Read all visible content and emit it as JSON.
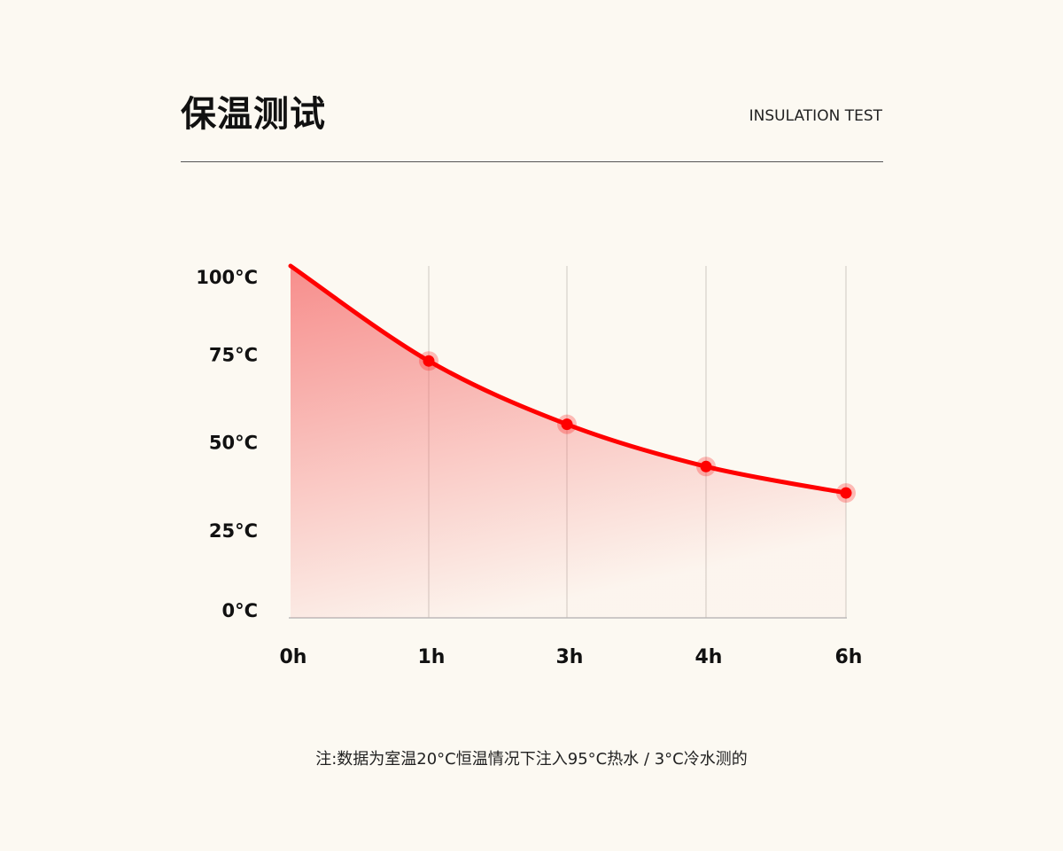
{
  "header": {
    "title": "保温测试",
    "subtitle": "INSULATION TEST"
  },
  "chart_data": {
    "type": "area",
    "title": "",
    "xlabel": "",
    "ylabel": "",
    "categories": [
      "0h",
      "1h",
      "3h",
      "4h",
      "6h"
    ],
    "values": [
      100,
      73,
      55,
      43,
      35.5
    ],
    "markers": [
      false,
      true,
      true,
      true,
      true
    ],
    "y_ticks": [
      "0°C",
      "25°C",
      "50°C",
      "75°C",
      "100°C"
    ],
    "y_tick_values": [
      0,
      25,
      50,
      75,
      100
    ],
    "ylim": [
      0,
      100
    ],
    "grid": "vertical",
    "line_color": "#ff0000",
    "fill_color": "#f56a6a"
  },
  "note": "注:数据为室温20°C恒温情况下注入95°C热水 / 3°C冷水测的"
}
